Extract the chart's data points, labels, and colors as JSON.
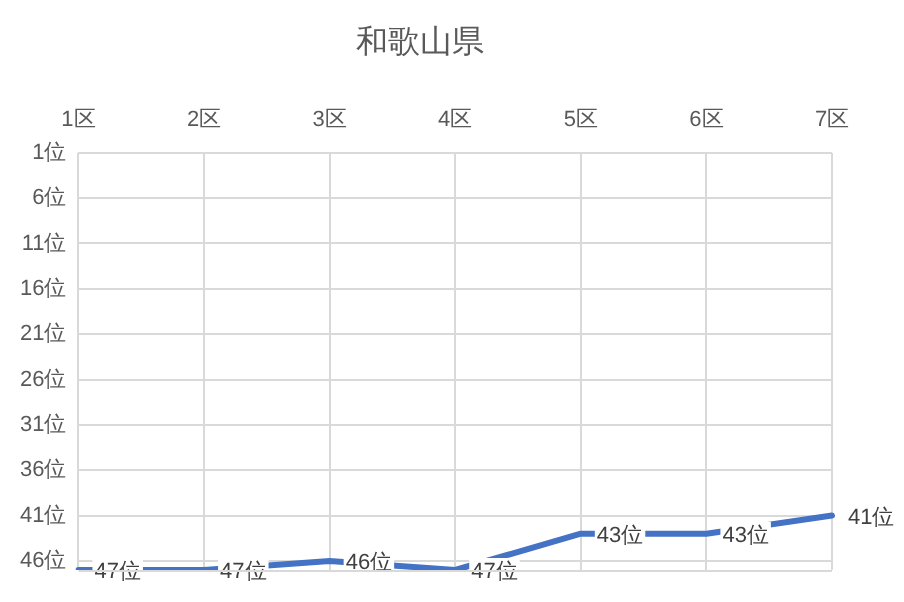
{
  "chart_data": {
    "type": "line",
    "title": "和歌山県",
    "categories": [
      "1区",
      "2区",
      "3区",
      "4区",
      "5区",
      "6区",
      "7区"
    ],
    "series": [
      {
        "color": "#4472c4",
        "values": [
          47,
          47,
          46,
          47,
          43,
          43,
          41
        ],
        "value_labels": [
          "47位",
          "47位",
          "46位",
          "47位",
          "43位",
          "43位",
          "41位"
        ]
      }
    ],
    "ylim": [
      47,
      1
    ],
    "yticks": [
      {
        "value": 1,
        "label": "1位"
      },
      {
        "value": 6,
        "label": "6位"
      },
      {
        "value": 11,
        "label": "11位"
      },
      {
        "value": 16,
        "label": "16位"
      },
      {
        "value": 21,
        "label": "21位"
      },
      {
        "value": 26,
        "label": "26位"
      },
      {
        "value": 31,
        "label": "31位"
      },
      {
        "value": 36,
        "label": "36位"
      },
      {
        "value": 41,
        "label": "41位"
      },
      {
        "value": 46,
        "label": "46位"
      }
    ],
    "grid": true,
    "legend": false,
    "marker": "none",
    "line_style": "solid"
  }
}
